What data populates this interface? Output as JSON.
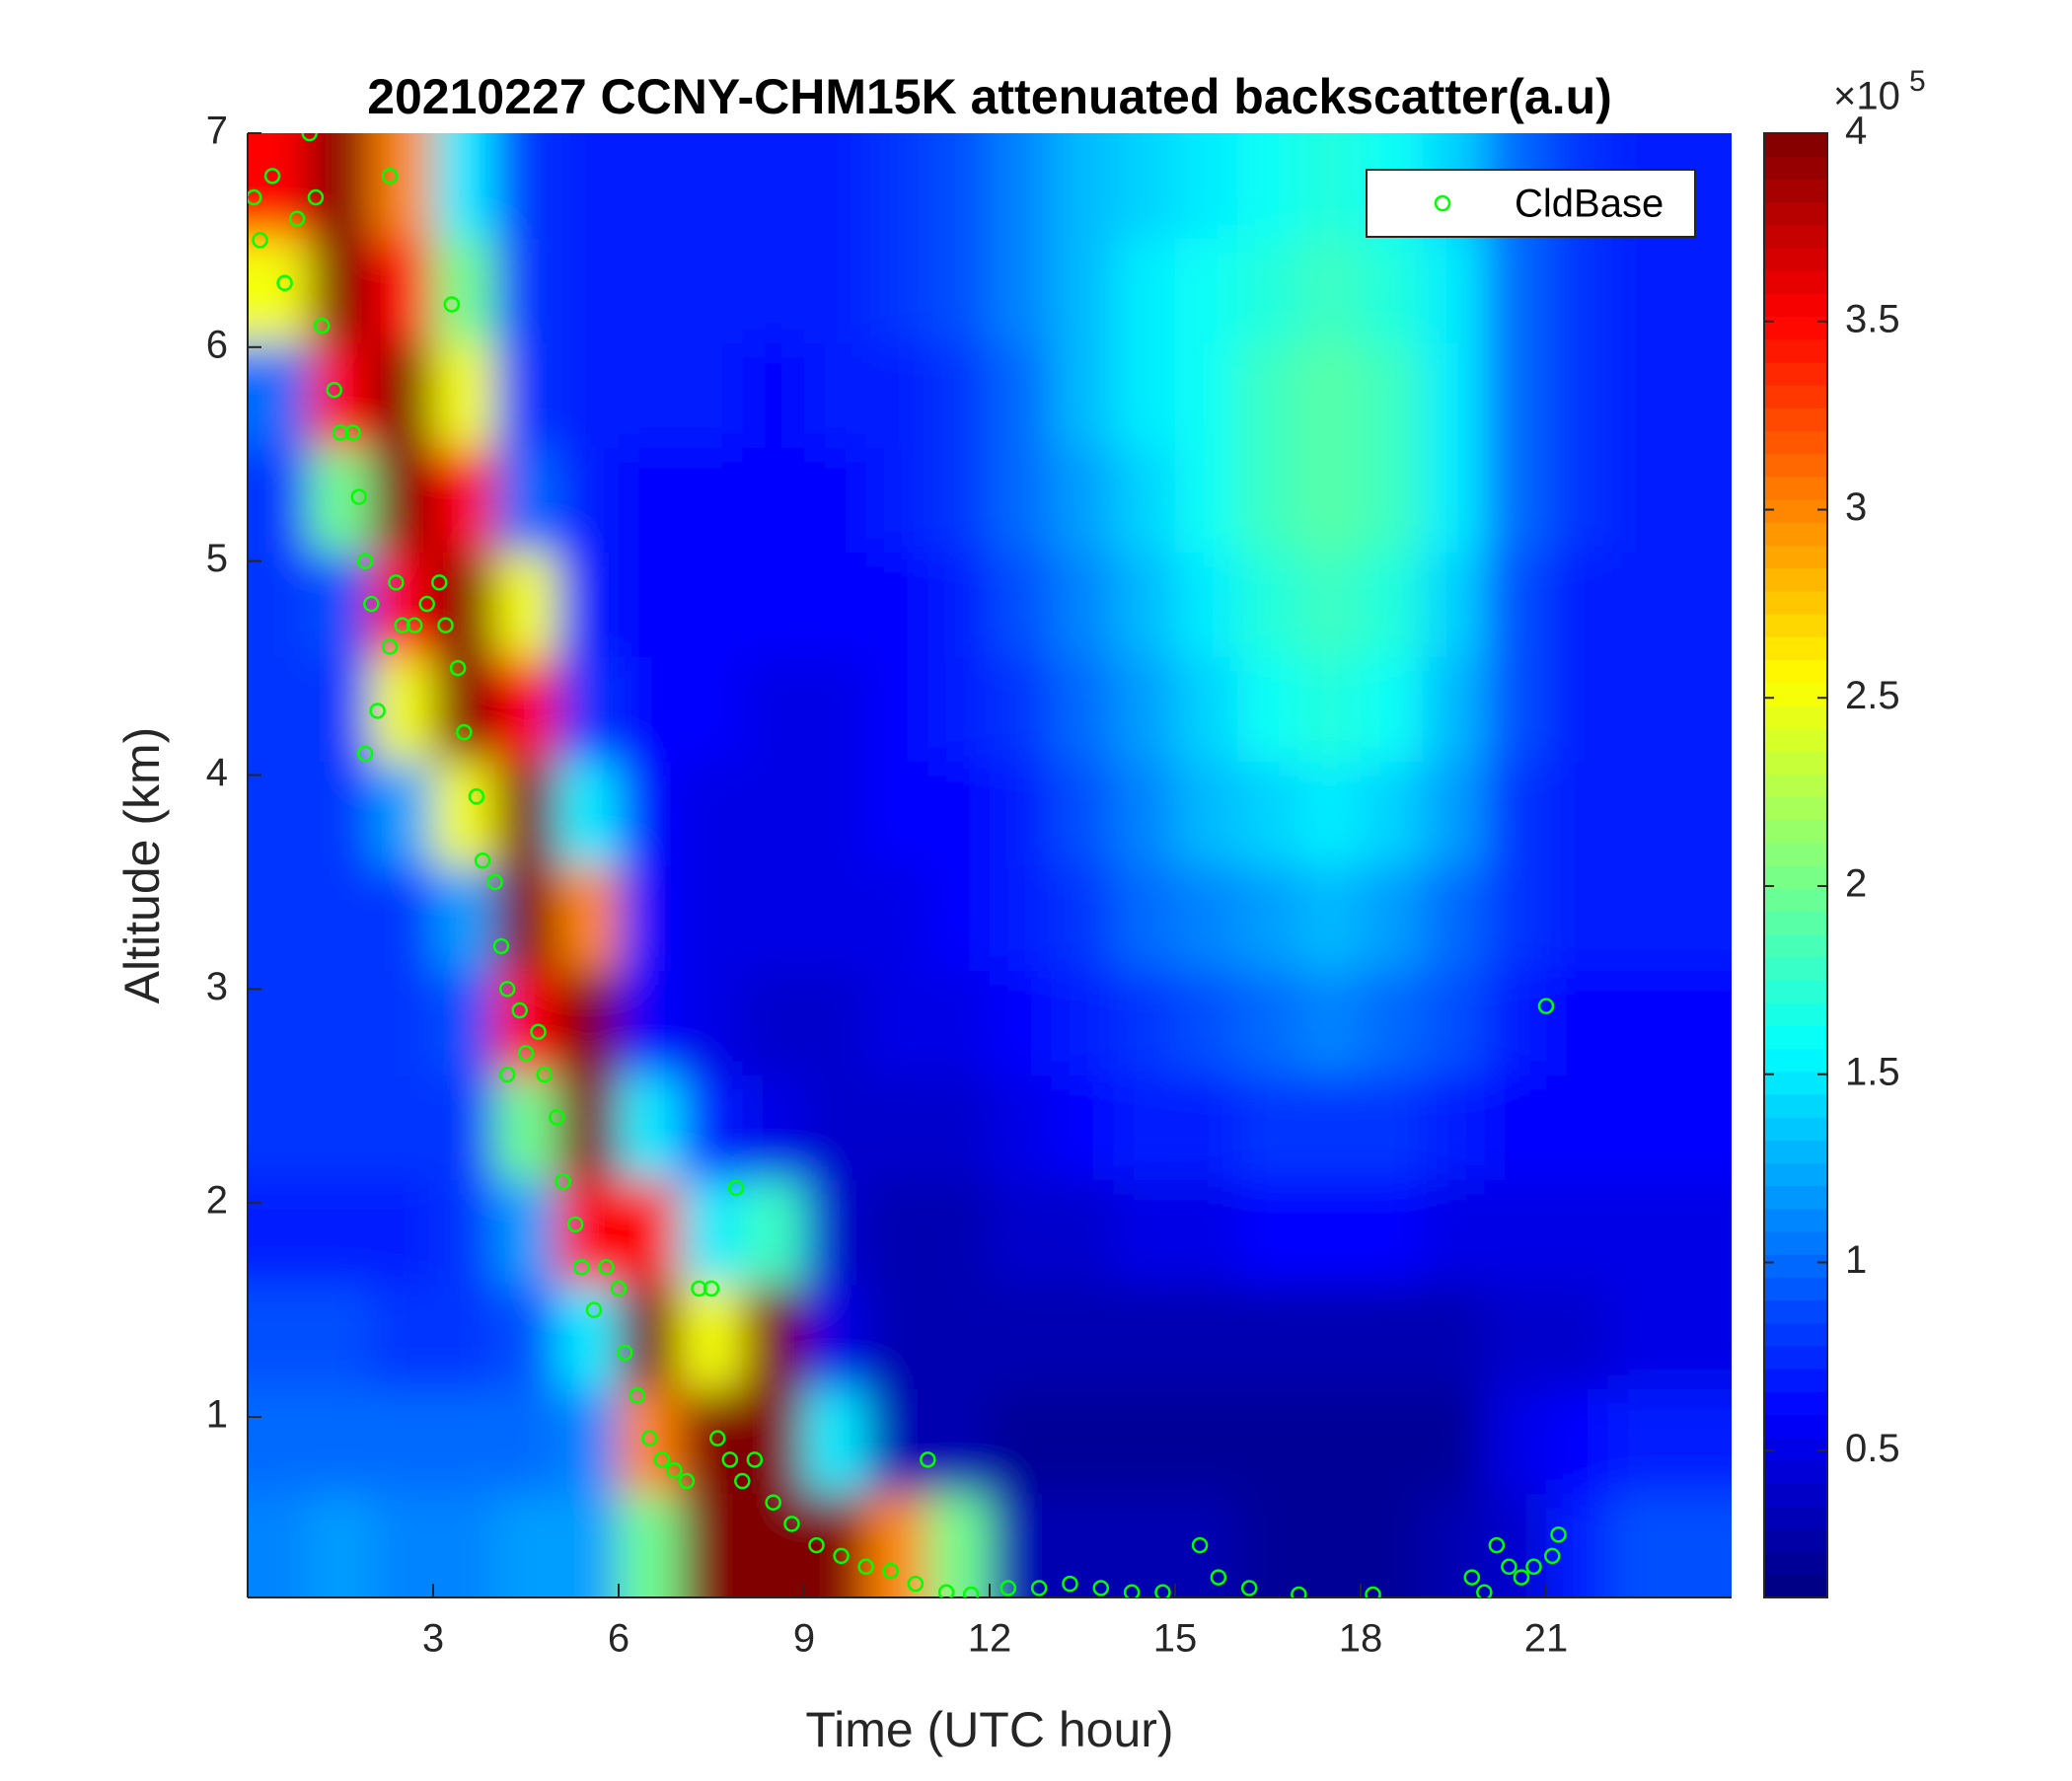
{
  "chart_data": {
    "type": "heatmap",
    "title": "20210227 CCNY-CHM15K attenuated backscatter(a.u)",
    "x_label": "Time (UTC hour)",
    "y_label": "Altitude (km)",
    "xlim": [
      0,
      24
    ],
    "xticks": [
      3,
      6,
      9,
      12,
      15,
      18,
      21
    ],
    "ylim": [
      0.156,
      7
    ],
    "yticks": [
      1,
      2,
      3,
      4,
      5,
      6,
      7
    ],
    "colormap": "jet",
    "clim": [
      0.11,
      4
    ],
    "cticks": [
      0.5,
      1,
      1.5,
      2,
      2.5,
      3,
      3.5,
      4
    ],
    "colorbar_multiplier": {
      "base": "×10",
      "exponent": "5"
    },
    "z": [
      [
        1.1,
        1.2,
        1.1,
        1.1,
        1.2,
        1.2,
        2,
        4,
        4,
        4,
        3,
        2,
        0.3,
        0.3,
        0.3,
        0.3,
        0.2,
        0.2,
        0.2,
        0.3,
        0.4,
        0.7,
        0.9,
        0.9
      ],
      [
        1.0,
        1.0,
        1.0,
        1.0,
        1.0,
        1.1,
        3,
        4,
        4,
        1.5,
        0.3,
        0.3,
        0.2,
        0.2,
        0.2,
        0.2,
        0.2,
        0.2,
        0.2,
        0.2,
        0.5,
        0.6,
        0.7,
        0.7
      ],
      [
        0.9,
        0.9,
        0.8,
        0.8,
        0.9,
        1.5,
        4,
        2.5,
        4,
        0.5,
        0.3,
        0.3,
        0.3,
        0.3,
        0.3,
        0.3,
        0.3,
        0.3,
        0.3,
        0.3,
        0.4,
        0.4,
        0.5,
        0.5
      ],
      [
        0.7,
        0.7,
        0.7,
        0.8,
        1.2,
        3.5,
        3.5,
        1.5,
        1.8,
        0.4,
        0.3,
        0.3,
        0.4,
        0.4,
        0.5,
        0.5,
        0.6,
        0.6,
        0.6,
        0.5,
        0.5,
        0.5,
        0.5,
        0.5
      ],
      [
        0.8,
        0.8,
        0.8,
        0.8,
        2.0,
        4,
        1.5,
        0.7,
        0.5,
        0.4,
        0.4,
        0.4,
        0.5,
        0.6,
        0.7,
        0.7,
        0.8,
        0.8,
        0.8,
        0.7,
        0.6,
        0.6,
        0.6,
        0.6
      ],
      [
        0.8,
        0.8,
        0.8,
        0.9,
        3.5,
        4,
        0.6,
        0.5,
        0.4,
        0.4,
        0.5,
        0.5,
        0.6,
        0.7,
        0.8,
        0.9,
        1.0,
        1.1,
        1.0,
        0.9,
        0.7,
        0.6,
        0.6,
        0.6
      ],
      [
        0.8,
        0.8,
        0.8,
        1.2,
        4,
        3,
        0.6,
        0.5,
        0.5,
        0.5,
        0.5,
        0.6,
        0.7,
        0.8,
        1.0,
        1.1,
        1.2,
        1.3,
        1.2,
        1.0,
        0.8,
        0.7,
        0.7,
        0.7
      ],
      [
        0.8,
        0.8,
        1.2,
        2.5,
        4,
        1.5,
        0.6,
        0.5,
        0.5,
        0.5,
        0.6,
        0.6,
        0.7,
        0.9,
        1.1,
        1.3,
        1.4,
        1.5,
        1.4,
        1.2,
        0.8,
        0.7,
        0.7,
        0.7
      ],
      [
        0.8,
        0.8,
        2.5,
        4,
        3.5,
        0.8,
        0.6,
        0.6,
        0.5,
        0.5,
        0.6,
        0.7,
        0.8,
        1.0,
        1.2,
        1.4,
        1.6,
        1.7,
        1.6,
        1.3,
        0.9,
        0.7,
        0.7,
        0.7
      ],
      [
        0.8,
        0.9,
        3.5,
        4,
        2.5,
        0.7,
        0.6,
        0.6,
        0.6,
        0.6,
        0.6,
        0.7,
        0.9,
        1.1,
        1.3,
        1.5,
        1.7,
        1.8,
        1.7,
        1.4,
        0.9,
        0.7,
        0.7,
        0.7
      ],
      [
        0.8,
        2.0,
        4,
        3.5,
        1.0,
        0.7,
        0.6,
        0.6,
        0.6,
        0.6,
        0.7,
        0.8,
        1.0,
        1.2,
        1.4,
        1.6,
        1.8,
        1.9,
        1.8,
        1.5,
        1.0,
        0.8,
        0.7,
        0.7
      ],
      [
        1.0,
        3.5,
        4,
        2.5,
        0.8,
        0.7,
        0.7,
        0.7,
        0.6,
        0.7,
        0.7,
        0.8,
        1.0,
        1.3,
        1.5,
        1.6,
        1.8,
        1.9,
        1.8,
        1.5,
        1.0,
        0.8,
        0.7,
        0.7
      ],
      [
        2.5,
        4,
        3.5,
        2,
        0.8,
        0.7,
        0.7,
        0.7,
        0.7,
        0.7,
        0.8,
        0.9,
        1.1,
        1.3,
        1.5,
        1.6,
        1.7,
        1.8,
        1.7,
        1.5,
        1.0,
        0.8,
        0.7,
        0.7
      ],
      [
        3.5,
        4,
        3,
        1.5,
        0.8,
        0.7,
        0.7,
        0.7,
        0.7,
        0.7,
        0.8,
        0.9,
        1.1,
        1.3,
        1.4,
        1.5,
        1.6,
        1.7,
        1.6,
        1.4,
        1.0,
        0.8,
        0.7,
        0.7
      ]
    ],
    "legend": "upper right",
    "series": [
      {
        "name": "CldBase",
        "type": "scatter",
        "color": "#00ff00",
        "x": [
          0.1,
          0.2,
          0.4,
          0.6,
          0.8,
          1.0,
          1.1,
          1.2,
          1.4,
          1.5,
          1.7,
          1.8,
          1.9,
          2.0,
          1.9,
          2.1,
          2.3,
          2.4,
          2.5,
          2.7,
          2.9,
          3.1,
          3.2,
          3.4,
          3.5,
          3.7,
          3.8,
          4.0,
          4.1,
          4.2,
          4.4,
          4.5,
          4.7,
          4.8,
          5.0,
          5.1,
          5.3,
          5.4,
          5.6,
          5.8,
          6.0,
          6.1,
          6.3,
          6.5,
          6.7,
          6.9,
          7.1,
          7.3,
          7.5,
          7.6,
          7.8,
          8.0,
          8.2,
          8.5,
          8.8,
          9.2,
          9.6,
          10.0,
          10.4,
          10.8,
          11.0,
          11.3,
          11.7,
          12.3,
          12.8,
          13.3,
          13.8,
          14.3,
          14.8,
          15.4,
          15.7,
          16.2,
          17.0,
          18.2,
          19.8,
          20.0,
          20.2,
          20.4,
          20.6,
          20.8,
          21.0,
          21.1,
          21.2,
          4.2,
          7.9,
          2.3,
          3.3
        ],
        "y": [
          6.7,
          6.5,
          6.8,
          6.3,
          6.6,
          7.0,
          6.7,
          6.1,
          5.8,
          5.6,
          5.6,
          5.3,
          5.0,
          4.8,
          4.1,
          4.3,
          4.6,
          4.9,
          4.7,
          4.7,
          4.8,
          4.9,
          4.7,
          4.5,
          4.2,
          3.9,
          3.6,
          3.5,
          3.2,
          3.0,
          2.9,
          2.7,
          2.8,
          2.6,
          2.4,
          2.1,
          1.9,
          1.7,
          1.5,
          1.7,
          1.6,
          1.3,
          1.1,
          0.9,
          0.8,
          0.75,
          0.7,
          1.6,
          1.6,
          0.9,
          0.8,
          0.7,
          0.8,
          0.6,
          0.5,
          0.4,
          0.35,
          0.3,
          0.28,
          0.22,
          0.8,
          0.18,
          0.17,
          0.2,
          0.2,
          0.22,
          0.2,
          0.18,
          0.18,
          0.4,
          0.25,
          0.2,
          0.17,
          0.17,
          0.25,
          0.18,
          0.4,
          0.3,
          0.25,
          0.3,
          2.92,
          0.35,
          0.45,
          2.6,
          2.07,
          6.8,
          6.2
        ]
      }
    ]
  }
}
